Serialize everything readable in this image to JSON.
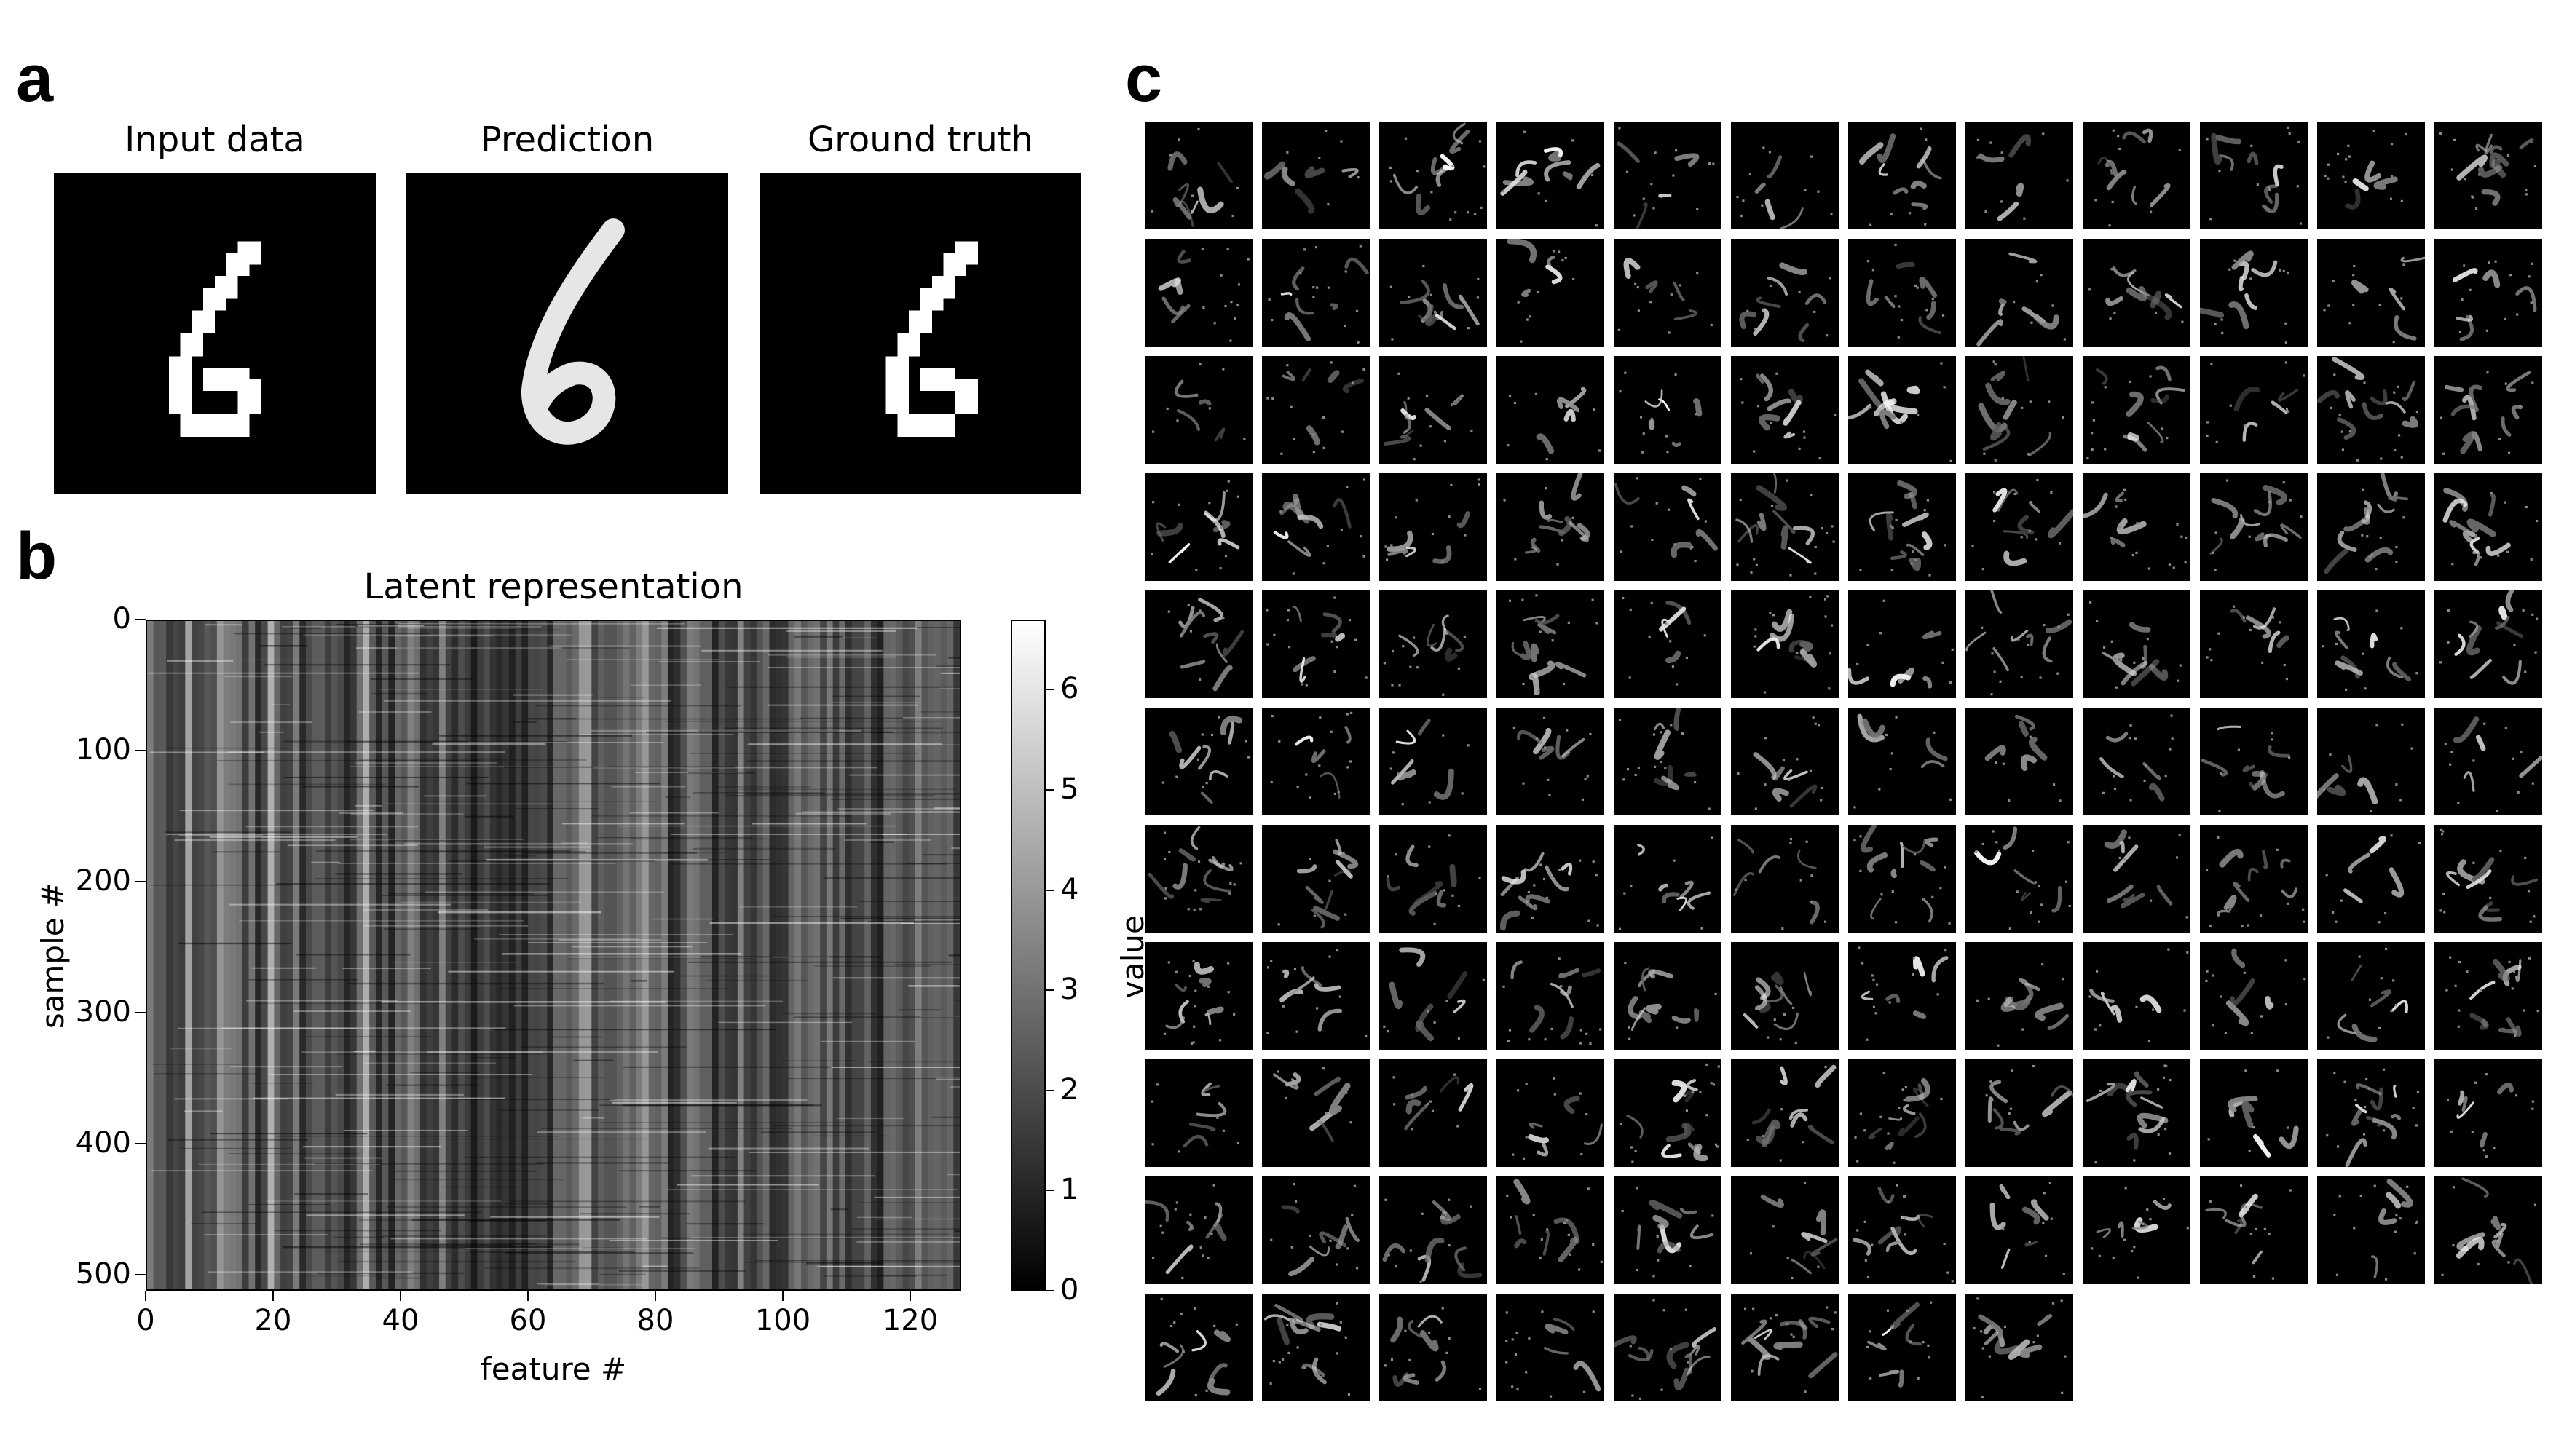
{
  "panels": {
    "a": "a",
    "b": "b",
    "c": "c"
  },
  "images": [
    {
      "title": "Input data",
      "digit": "6"
    },
    {
      "title": "Prediction",
      "digit": "6"
    },
    {
      "title": "Ground truth",
      "digit": "6"
    }
  ],
  "chart_data": {
    "type": "heatmap",
    "title": "Latent representation",
    "xlabel": "feature #",
    "ylabel": "sample #",
    "colorbar_label": "value",
    "colormap": "gray",
    "n_features": 128,
    "n_samples": 512,
    "xlim": [
      0,
      128
    ],
    "ylim": [
      512,
      0
    ],
    "x_ticks": [
      0,
      20,
      40,
      60,
      80,
      100,
      120
    ],
    "y_ticks": [
      0,
      100,
      200,
      300,
      400,
      500
    ],
    "value_range": [
      0,
      6.7
    ],
    "colorbar_ticks": [
      0,
      1,
      2,
      3,
      4,
      5,
      6
    ],
    "bright_feature_band": [
      64,
      79
    ],
    "dim_feature_band": [
      48,
      63
    ]
  },
  "feature_maps": {
    "rows": 11,
    "cols": 12,
    "count": 128
  }
}
